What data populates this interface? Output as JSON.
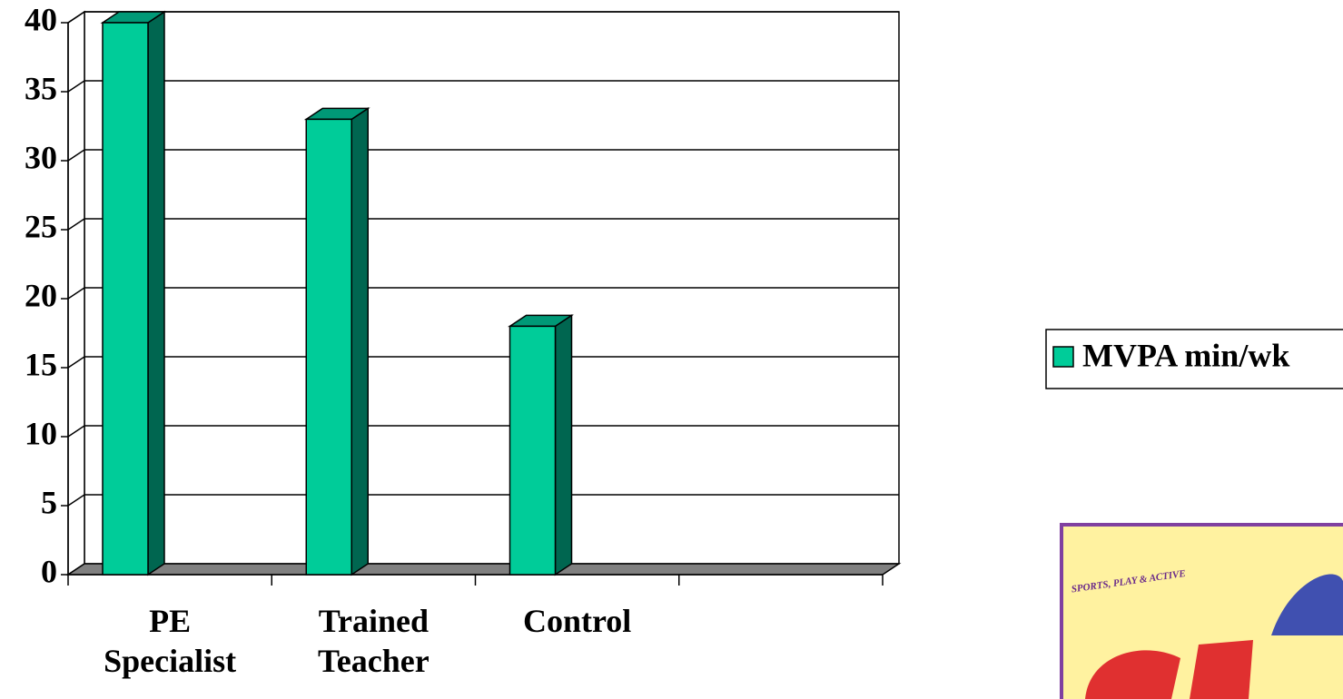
{
  "chart_data": {
    "type": "bar",
    "categories": [
      "PE Specialist",
      "Trained Teacher",
      "Control",
      null
    ],
    "series": [
      {
        "name": "MVPA min/wk",
        "color": "#00cc99",
        "values": [
          40,
          33,
          18,
          null
        ]
      }
    ],
    "ylim": [
      0,
      40
    ],
    "yticks": [
      0,
      5,
      10,
      15,
      20,
      25,
      30,
      35,
      40
    ],
    "grid": true,
    "legend": "right"
  },
  "logo": {
    "tagline": "SPORTS, PLAY & ACTIVE"
  }
}
